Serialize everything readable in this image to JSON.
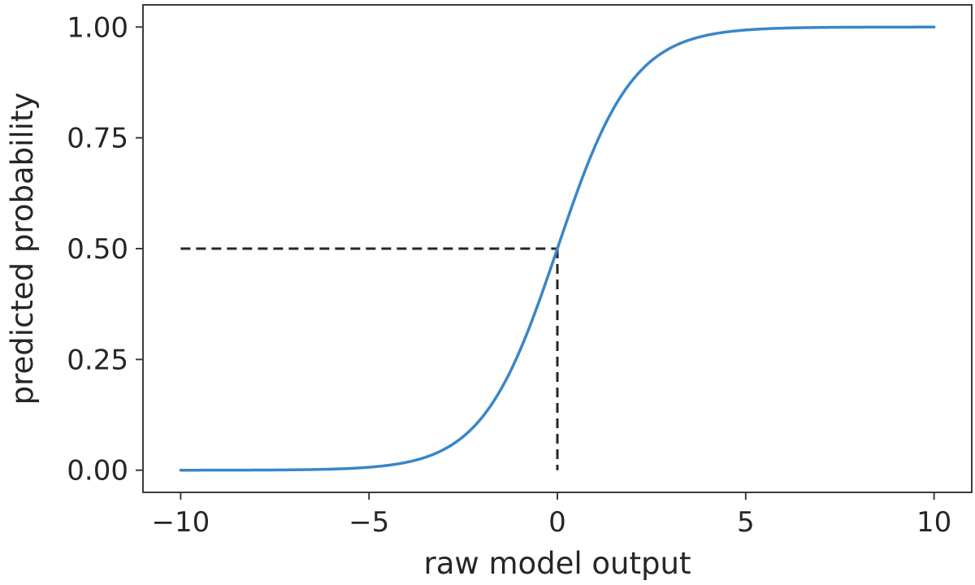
{
  "chart_data": {
    "type": "line",
    "title": "",
    "xlabel": "raw model output",
    "ylabel": "predicted probability",
    "xlim": [
      -11,
      11
    ],
    "ylim": [
      -0.05,
      1.05
    ],
    "grid": false,
    "legend": "none",
    "x_ticks": [
      -10,
      -5,
      0,
      5,
      10
    ],
    "x_tick_labels": [
      "−10",
      "−5",
      "0",
      "5",
      "10"
    ],
    "y_ticks": [
      0,
      0.25,
      0.5,
      0.75,
      1.0
    ],
    "y_tick_labels": [
      "0.00",
      "0.25",
      "0.50",
      "0.75",
      "1.00"
    ],
    "series": [
      {
        "function": "sigmoid",
        "color": "#3a86c8",
        "x": [
          -10,
          -9,
          -8,
          -7,
          -6,
          -5,
          -4,
          -3,
          -2,
          -1.5,
          -1,
          -0.5,
          0,
          0.5,
          1,
          1.5,
          2,
          3,
          4,
          5,
          6,
          7,
          8,
          9,
          10
        ],
        "y": [
          0.0,
          0.0001,
          0.0003,
          0.0009,
          0.0025,
          0.0067,
          0.018,
          0.0474,
          0.1192,
          0.1824,
          0.2689,
          0.3775,
          0.5,
          0.6225,
          0.7311,
          0.8176,
          0.8808,
          0.9526,
          0.982,
          0.9933,
          0.9975,
          0.9991,
          0.9997,
          0.9999,
          1.0
        ]
      }
    ],
    "reference_lines": [
      {
        "style": "dashed",
        "color": "#262626",
        "from": [
          -10,
          0.5
        ],
        "to": [
          0,
          0.5
        ]
      },
      {
        "style": "dashed",
        "color": "#262626",
        "from": [
          0,
          0.5
        ],
        "to": [
          0,
          0
        ]
      }
    ]
  }
}
